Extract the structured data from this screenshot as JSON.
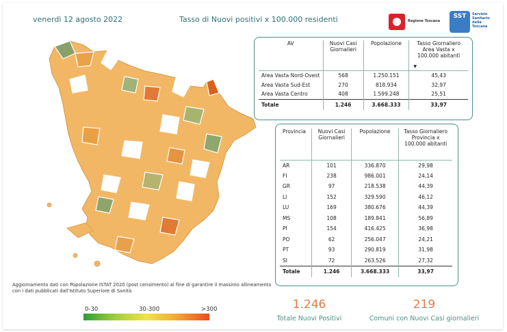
{
  "header": {
    "date": "venerdì 12 agosto 2022",
    "title": "Tasso di Nuovi positivi x 100.000 residenti",
    "logo_regione": "Regione Toscana",
    "logo_sst_badge": "SST",
    "logo_sst_text": "Servizio Sanitario della Toscana"
  },
  "area_vasta_table": {
    "headers": [
      "AV",
      "Nuovi Casi Giornalieri",
      "Popolazione",
      "Tasso Giornaliero Area Vasta x 100.000 abitanti"
    ],
    "sort_indicator": "▼",
    "rows": [
      [
        "Area Vasta Nord-Ovest",
        "568",
        "1.250.151",
        "45,43"
      ],
      [
        "Area Vasta Sud-Est",
        "270",
        "818.934",
        "32,97"
      ],
      [
        "Area Vasta Centro",
        "408",
        "1.599.248",
        "25,51"
      ]
    ],
    "total": [
      "Totale",
      "1.246",
      "3.668.333",
      "33,97"
    ]
  },
  "provincia_table": {
    "headers": [
      "Provincia",
      "Nuovi Casi Giornalieri",
      "Popolazione",
      "Tasso Giornaliero Provincia x 100.000 abitanti"
    ],
    "rows": [
      [
        "AR",
        "101",
        "336.870",
        "29,98"
      ],
      [
        "FI",
        "238",
        "986.001",
        "24,14"
      ],
      [
        "GR",
        "97",
        "218.538",
        "44,39"
      ],
      [
        "LI",
        "152",
        "329.590",
        "46,12"
      ],
      [
        "LU",
        "169",
        "380.676",
        "44,39"
      ],
      [
        "MS",
        "108",
        "189.841",
        "56,89"
      ],
      [
        "PI",
        "154",
        "416.425",
        "36,98"
      ],
      [
        "PO",
        "62",
        "256.047",
        "24,21"
      ],
      [
        "PT",
        "93",
        "290.819",
        "31,98"
      ],
      [
        "SI",
        "72",
        "263.526",
        "27,32"
      ]
    ],
    "total": [
      "Totale",
      "1.246",
      "3.668.333",
      "33,97"
    ]
  },
  "kpis": {
    "total_value": "1.246",
    "total_label": "Totale Nuovi Positivi",
    "comuni_value": "219",
    "comuni_label": "Comuni con Nuovi Casi giornalieri"
  },
  "footnote": "Aggiornamento dati con Popolazione ISTAT 2020 (post censimento) al fine di garantire il massimo allineamento con i dati pubblicati dall'Istituto Superiore di Sanità",
  "legend": {
    "labels": [
      "0-30",
      "30-300",
      ">300"
    ],
    "colors": [
      "#2e9e37",
      "#9fce3c",
      "#f1e34a",
      "#f3a535",
      "#ea4b1e"
    ]
  },
  "colors": {
    "accent": "#2f6f73",
    "border": "#4a8f84",
    "kpi": "#e07a4a"
  }
}
